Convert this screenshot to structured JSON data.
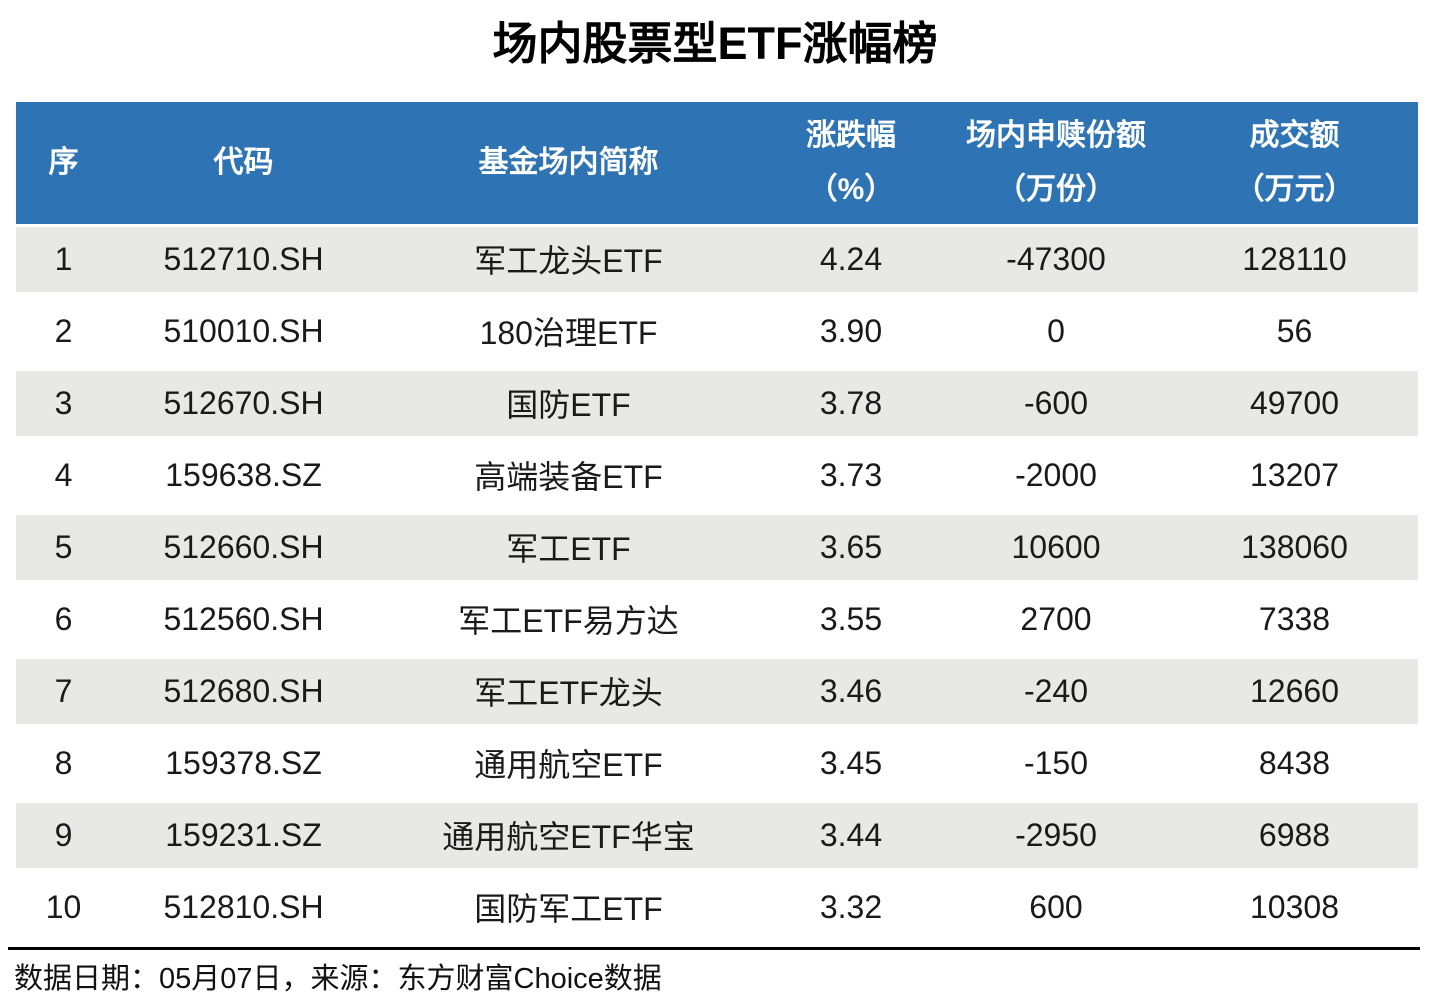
{
  "title": "场内股票型ETF涨幅榜",
  "footer": "数据日期：05月07日，来源：东方财富Choice数据",
  "colors": {
    "header_bg": "#2E73B4",
    "header_text": "#FFFFFF",
    "stripe_bg": "#E8E8E6",
    "body_text": "#1A1A1A",
    "rule": "#000000"
  },
  "chart_data": {
    "type": "table",
    "title": "场内股票型ETF涨幅榜",
    "legend_position": "none",
    "grid": "row-stripes",
    "columns": [
      {
        "id": "rank",
        "line1": "序",
        "line2": ""
      },
      {
        "id": "code",
        "line1": "代码",
        "line2": ""
      },
      {
        "id": "name",
        "line1": "基金场内简称",
        "line2": ""
      },
      {
        "id": "change_pct",
        "line1": "涨跌幅",
        "line2": "（%）"
      },
      {
        "id": "flow_shares",
        "line1": "场内申赎份额",
        "line2": "（万份）"
      },
      {
        "id": "turnover",
        "line1": "成交额",
        "line2": "（万元）"
      }
    ],
    "rows": [
      {
        "rank": "1",
        "code": "512710.SH",
        "name": "军工龙头ETF",
        "change_pct": "4.24",
        "flow_shares": "-47300",
        "turnover": "128110"
      },
      {
        "rank": "2",
        "code": "510010.SH",
        "name": "180治理ETF",
        "change_pct": "3.90",
        "flow_shares": "0",
        "turnover": "56"
      },
      {
        "rank": "3",
        "code": "512670.SH",
        "name": "国防ETF",
        "change_pct": "3.78",
        "flow_shares": "-600",
        "turnover": "49700"
      },
      {
        "rank": "4",
        "code": "159638.SZ",
        "name": "高端装备ETF",
        "change_pct": "3.73",
        "flow_shares": "-2000",
        "turnover": "13207"
      },
      {
        "rank": "5",
        "code": "512660.SH",
        "name": "军工ETF",
        "change_pct": "3.65",
        "flow_shares": "10600",
        "turnover": "138060"
      },
      {
        "rank": "6",
        "code": "512560.SH",
        "name": "军工ETF易方达",
        "change_pct": "3.55",
        "flow_shares": "2700",
        "turnover": "7338"
      },
      {
        "rank": "7",
        "code": "512680.SH",
        "name": "军工ETF龙头",
        "change_pct": "3.46",
        "flow_shares": "-240",
        "turnover": "12660"
      },
      {
        "rank": "8",
        "code": "159378.SZ",
        "name": "通用航空ETF",
        "change_pct": "3.45",
        "flow_shares": "-150",
        "turnover": "8438"
      },
      {
        "rank": "9",
        "code": "159231.SZ",
        "name": "通用航空ETF华宝",
        "change_pct": "3.44",
        "flow_shares": "-2950",
        "turnover": "6988"
      },
      {
        "rank": "10",
        "code": "512810.SH",
        "name": "国防军工ETF",
        "change_pct": "3.32",
        "flow_shares": "600",
        "turnover": "10308"
      }
    ]
  }
}
